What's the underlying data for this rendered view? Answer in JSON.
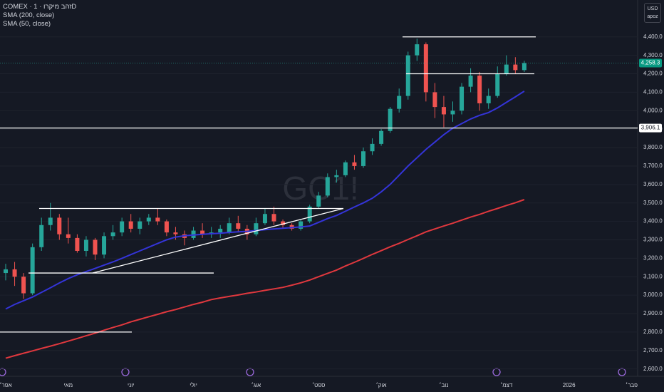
{
  "chart_data": {
    "type": "candlestick",
    "title": "COMEX · זהב מיקרו · 1D",
    "watermark": "GC1!",
    "currency": "USD",
    "mode": "apoz",
    "categories": [
      "אפר׳",
      null,
      null,
      null,
      null,
      null,
      null,
      "מאי",
      null,
      null,
      null,
      null,
      null,
      null,
      "יוני",
      null,
      null,
      null,
      null,
      null,
      null,
      "יולי",
      null,
      null,
      null,
      null,
      null,
      null,
      "אוג׳",
      null,
      null,
      null,
      null,
      null,
      null,
      "ספט׳",
      null,
      null,
      null,
      null,
      null,
      null,
      "אוק׳",
      null,
      null,
      null,
      null,
      null,
      null,
      "נוב׳",
      null,
      null,
      null,
      null,
      null,
      null,
      "דצמ׳",
      null,
      null,
      null,
      null,
      null,
      null,
      "2026",
      null,
      null,
      null,
      null,
      null,
      null,
      "פבר׳"
    ],
    "open": [
      3120,
      3140,
      3100,
      3010,
      3260,
      3380,
      3420,
      3330,
      3310,
      3240,
      3300,
      3220,
      3320,
      3340,
      3400,
      3360,
      3400,
      3420,
      3400,
      3340,
      3330,
      3310,
      3350,
      3330,
      3340,
      3340,
      3390,
      3360,
      3330,
      3390,
      3440,
      3400,
      3380,
      3360,
      3400,
      3480,
      3540,
      3640,
      3650,
      3720,
      3700,
      3780,
      3820,
      3890,
      4010,
      4080,
      4300,
      4360,
      4100,
      4020,
      3980,
      4000,
      4130,
      4190,
      4040,
      4080,
      4200,
      4250,
      4220,
      null,
      null,
      null,
      null,
      null,
      null,
      null,
      null,
      null,
      null,
      null,
      null
    ],
    "high": [
      3170,
      3180,
      3120,
      3280,
      3420,
      3500,
      3440,
      3420,
      3330,
      3320,
      3310,
      3340,
      3380,
      3420,
      3440,
      3420,
      3440,
      3470,
      3410,
      3370,
      3350,
      3370,
      3390,
      3370,
      3380,
      3420,
      3430,
      3380,
      3420,
      3470,
      3480,
      3410,
      3390,
      3410,
      3490,
      3560,
      3660,
      3680,
      3730,
      3760,
      3800,
      3850,
      3900,
      4020,
      4120,
      4320,
      4390,
      4370,
      4150,
      4080,
      4050,
      4150,
      4230,
      4210,
      4120,
      4240,
      4300,
      4290,
      4270,
      null,
      null,
      null,
      null,
      null,
      null,
      null,
      null,
      null,
      null,
      null,
      null
    ],
    "low": [
      3080,
      3050,
      2980,
      3000,
      3240,
      3350,
      3300,
      3280,
      3230,
      3210,
      3190,
      3200,
      3300,
      3320,
      3340,
      3330,
      3380,
      3380,
      3320,
      3300,
      3270,
      3300,
      3310,
      3310,
      3310,
      3330,
      3340,
      3300,
      3320,
      3380,
      3380,
      3360,
      3350,
      3350,
      3390,
      3470,
      3530,
      3610,
      3640,
      3680,
      3690,
      3760,
      3810,
      3880,
      3990,
      4060,
      4270,
      4050,
      3960,
      3910,
      3940,
      3980,
      4100,
      4000,
      4010,
      4070,
      4190,
      4200,
      4210,
      null,
      null,
      null,
      null,
      null,
      null,
      null,
      null,
      null,
      null,
      null,
      null
    ],
    "close": [
      3140,
      3100,
      3010,
      3260,
      3380,
      3420,
      3330,
      3310,
      3240,
      3300,
      3220,
      3320,
      3340,
      3400,
      3360,
      3400,
      3420,
      3400,
      3340,
      3330,
      3310,
      3350,
      3330,
      3340,
      3360,
      3390,
      3360,
      3330,
      3390,
      3440,
      3400,
      3380,
      3360,
      3400,
      3480,
      3540,
      3640,
      3650,
      3720,
      3700,
      3780,
      3820,
      3890,
      4010,
      4080,
      4300,
      4360,
      4100,
      4020,
      3980,
      4000,
      4130,
      4190,
      4040,
      4080,
      4200,
      4250,
      4220,
      4258.3,
      null,
      null,
      null,
      null,
      null,
      null,
      null,
      null,
      null,
      null,
      null,
      null
    ],
    "up_color": "#26a69a",
    "down_color": "#ef5350",
    "series": [
      {
        "name": "SMA (200, close)",
        "color": "#e0383e",
        "values": [
          2658,
          2672,
          2685,
          2698,
          2711,
          2724,
          2737,
          2751,
          2765,
          2780,
          2794,
          2810,
          2825,
          2839,
          2855,
          2869,
          2883,
          2896,
          2910,
          2922,
          2936,
          2950,
          2962,
          2976,
          2985,
          2993,
          3001,
          3010,
          3017,
          3026,
          3034,
          3042,
          3054,
          3067,
          3082,
          3100,
          3118,
          3136,
          3158,
          3178,
          3199,
          3221,
          3241,
          3262,
          3281,
          3302,
          3322,
          3343,
          3359,
          3375,
          3390,
          3407,
          3423,
          3438,
          3455,
          3470,
          3486,
          3501,
          3518,
          null,
          null,
          null,
          null,
          null,
          null,
          null,
          null,
          null,
          null,
          null,
          null
        ]
      },
      {
        "name": "SMA (50, close)",
        "color": "#3434d8",
        "values": [
          2925,
          2950,
          2970,
          2990,
          3015,
          3040,
          3066,
          3090,
          3110,
          3128,
          3145,
          3163,
          3180,
          3200,
          3220,
          3240,
          3260,
          3280,
          3300,
          3315,
          3322,
          3326,
          3330,
          3333,
          3336,
          3340,
          3343,
          3346,
          3350,
          3355,
          3359,
          3363,
          3366,
          3370,
          3375,
          3395,
          3415,
          3432,
          3455,
          3478,
          3500,
          3525,
          3560,
          3600,
          3650,
          3700,
          3745,
          3790,
          3830,
          3870,
          3905,
          3930,
          3955,
          3975,
          3990,
          4015,
          4045,
          4075,
          4106,
          null,
          null,
          null,
          null,
          null,
          null,
          null,
          null,
          null,
          null,
          null,
          null
        ]
      }
    ],
    "last_price": {
      "value": 4258.3,
      "label": "4,258.3"
    },
    "levels": [
      {
        "value": 3906.1,
        "label": "3,906.1"
      },
      4400,
      4200,
      3470,
      3120,
      2800
    ],
    "trendline": [
      3120,
      3470
    ],
    "ylim": [
      2560,
      4600
    ],
    "yticks": [
      {
        "value": 2600,
        "label": "2,600.0"
      },
      {
        "value": 2700,
        "label": "2,700.0"
      },
      {
        "value": 2800,
        "label": "2,800.0"
      },
      {
        "value": 2900,
        "label": "2,900.0"
      },
      {
        "value": 3000,
        "label": "3,000.0"
      },
      {
        "value": 3100,
        "label": "3,100.0"
      },
      {
        "value": 3200,
        "label": "3,200.0"
      },
      {
        "value": 3300,
        "label": "3,300.0"
      },
      {
        "value": 3400,
        "label": "3,400.0"
      },
      {
        "value": 3500,
        "label": "3,500.0"
      },
      {
        "value": 3600,
        "label": "3,600.0"
      },
      {
        "value": 3700,
        "label": "3,700.0"
      },
      {
        "value": 3800,
        "label": "3,800.0"
      },
      {
        "value": 3900,
        "label": "3,900.0"
      },
      {
        "value": 4000,
        "label": "4,000.0"
      },
      {
        "value": 4100,
        "label": "4,100.0"
      },
      {
        "value": 4200,
        "label": "4,200.0"
      },
      {
        "value": 4300,
        "label": "4,300.0"
      },
      {
        "value": 4400,
        "label": "4,400.0"
      }
    ],
    "grid": true
  }
}
